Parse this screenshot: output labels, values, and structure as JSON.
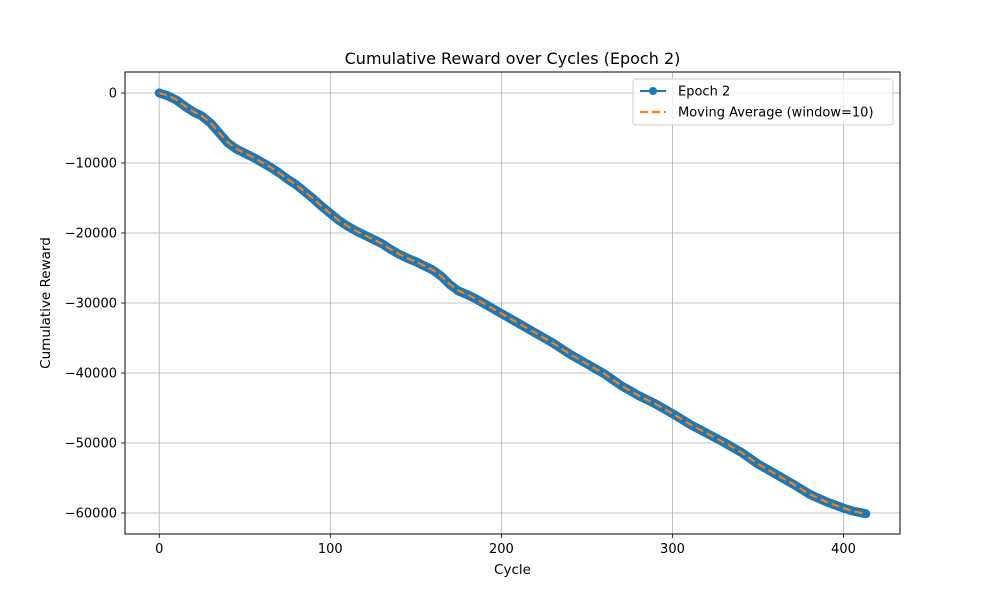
{
  "chart_data": {
    "type": "line",
    "title": "Cumulative Reward over Cycles (Epoch 2)",
    "xlabel": "Cycle",
    "ylabel": "Cumulative Reward",
    "xlim": [
      -20,
      433
    ],
    "ylim": [
      -63000,
      3000
    ],
    "xticks": [
      0,
      100,
      200,
      300,
      400
    ],
    "yticks": [
      0,
      -10000,
      -20000,
      -30000,
      -40000,
      -50000,
      -60000
    ],
    "grid": true,
    "legend_position": "top-right",
    "series": [
      {
        "name": "Epoch 2",
        "color": "#1f77b4",
        "style": "solid-with-markers",
        "x": [
          0,
          5,
          10,
          15,
          20,
          25,
          30,
          35,
          40,
          45,
          50,
          55,
          60,
          65,
          70,
          75,
          80,
          85,
          90,
          95,
          100,
          105,
          110,
          115,
          120,
          125,
          130,
          135,
          140,
          145,
          150,
          155,
          160,
          165,
          170,
          175,
          180,
          185,
          190,
          195,
          200,
          210,
          220,
          230,
          240,
          250,
          260,
          270,
          280,
          290,
          300,
          310,
          320,
          330,
          340,
          350,
          360,
          370,
          380,
          390,
          400,
          405,
          413
        ],
        "y": [
          0,
          -400,
          -1000,
          -1900,
          -2700,
          -3300,
          -4300,
          -5700,
          -7100,
          -8000,
          -8600,
          -9200,
          -9900,
          -10600,
          -11400,
          -12300,
          -13100,
          -14100,
          -15100,
          -16200,
          -17200,
          -18200,
          -19000,
          -19700,
          -20300,
          -20900,
          -21500,
          -22300,
          -23000,
          -23600,
          -24100,
          -24700,
          -25300,
          -26200,
          -27400,
          -28300,
          -28800,
          -29400,
          -30100,
          -30800,
          -31500,
          -32900,
          -34300,
          -35700,
          -37300,
          -38700,
          -40100,
          -41800,
          -43200,
          -44400,
          -45800,
          -47300,
          -48600,
          -49900,
          -51300,
          -53000,
          -54400,
          -55800,
          -57300,
          -58400,
          -59300,
          -59700,
          -60100
        ]
      },
      {
        "name": "Moving Average (window=10)",
        "color": "#ff7f0e",
        "style": "dashed",
        "x": [
          0,
          5,
          10,
          15,
          20,
          25,
          30,
          35,
          40,
          45,
          50,
          55,
          60,
          65,
          70,
          75,
          80,
          85,
          90,
          95,
          100,
          105,
          110,
          115,
          120,
          125,
          130,
          135,
          140,
          145,
          150,
          155,
          160,
          165,
          170,
          175,
          180,
          185,
          190,
          195,
          200,
          210,
          220,
          230,
          240,
          250,
          260,
          270,
          280,
          290,
          300,
          310,
          320,
          330,
          340,
          350,
          360,
          370,
          380,
          390,
          400,
          405,
          413
        ],
        "y": [
          0,
          -350,
          -950,
          -1850,
          -2650,
          -3300,
          -4250,
          -5650,
          -7050,
          -7950,
          -8600,
          -9200,
          -9900,
          -10600,
          -11400,
          -12300,
          -13100,
          -14100,
          -15100,
          -16200,
          -17200,
          -18200,
          -19000,
          -19700,
          -20300,
          -20900,
          -21500,
          -22300,
          -23000,
          -23600,
          -24100,
          -24700,
          -25300,
          -26200,
          -27350,
          -28250,
          -28800,
          -29400,
          -30100,
          -30800,
          -31500,
          -32900,
          -34300,
          -35700,
          -37300,
          -38700,
          -40100,
          -41800,
          -43200,
          -44400,
          -45800,
          -47300,
          -48600,
          -49900,
          -51300,
          -53000,
          -54400,
          -55800,
          -57300,
          -58400,
          -59300,
          -59700,
          -60100
        ]
      }
    ]
  }
}
